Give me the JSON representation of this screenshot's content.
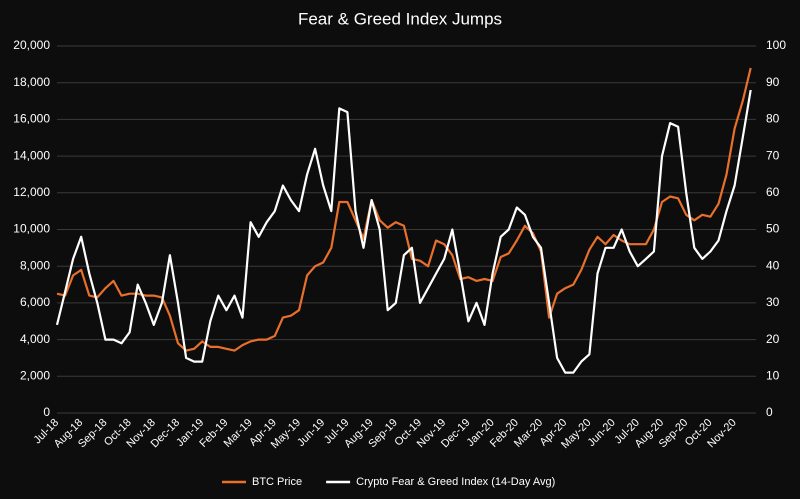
{
  "chart_data": {
    "type": "line",
    "title": "Fear & Greed Index Jumps",
    "x": [
      "Jul-18",
      null,
      null,
      "Aug-18",
      null,
      null,
      "Sep-18",
      null,
      null,
      "Oct-18",
      null,
      null,
      "Nov-18",
      null,
      null,
      "Dec-18",
      null,
      null,
      "Jan-19",
      null,
      null,
      "Feb-19",
      null,
      null,
      "Mar-19",
      null,
      null,
      "Apr-19",
      null,
      null,
      "May-19",
      null,
      null,
      "Jun-19",
      null,
      null,
      "Jul-19",
      null,
      null,
      "Aug-19",
      null,
      null,
      "Sep-19",
      null,
      null,
      "Oct-19",
      null,
      null,
      "Nov-19",
      null,
      null,
      "Dec-19",
      null,
      null,
      "Jan-20",
      null,
      null,
      "Feb-20",
      null,
      null,
      "Mar-20",
      null,
      null,
      "Apr-20",
      null,
      null,
      "May-20",
      null,
      null,
      "Jun-20",
      null,
      null,
      "Jul-20",
      null,
      null,
      "Aug-20",
      null,
      null,
      "Sep-20",
      null,
      null,
      "Oct-20",
      null,
      null,
      "Nov-20",
      null,
      null
    ],
    "series": [
      {
        "name": "BTC Price",
        "color": "#e8702a",
        "axis": "y",
        "values": [
          6500,
          6400,
          7500,
          7800,
          6400,
          6300,
          6800,
          7200,
          6400,
          6500,
          6500,
          6400,
          6400,
          6300,
          5300,
          3800,
          3400,
          3500,
          3900,
          3600,
          3600,
          3500,
          3400,
          3700,
          3900,
          4000,
          4000,
          4200,
          5200,
          5300,
          5600,
          7500,
          8000,
          8200,
          9000,
          11500,
          11500,
          10500,
          9500,
          11600,
          10500,
          10100,
          10400,
          10200,
          8400,
          8300,
          8000,
          9400,
          9200,
          8600,
          7300,
          7400,
          7200,
          7300,
          7200,
          8500,
          8700,
          9400,
          10200,
          9800,
          8800,
          5200,
          6500,
          6800,
          7000,
          7800,
          8900,
          9600,
          9200,
          9700,
          9400,
          9200,
          9200,
          9200,
          10000,
          11500,
          11800,
          11700,
          10800,
          10500,
          10800,
          10700,
          11400,
          13000,
          15500,
          17000,
          18800
        ]
      },
      {
        "name": "Crypto Fear & Greed Index (14-Day Avg)",
        "color": "#ffffff",
        "axis": "y2",
        "values": [
          24,
          33,
          42,
          48,
          38,
          30,
          20,
          20,
          19,
          22,
          35,
          30,
          24,
          30,
          43,
          30,
          15,
          14,
          14,
          25,
          32,
          28,
          32,
          26,
          52,
          48,
          52,
          55,
          62,
          58,
          55,
          65,
          72,
          62,
          55,
          83,
          82,
          55,
          45,
          58,
          50,
          28,
          30,
          43,
          45,
          30,
          34,
          38,
          42,
          50,
          38,
          25,
          30,
          24,
          38,
          48,
          50,
          56,
          54,
          48,
          45,
          30,
          15,
          11,
          11,
          14,
          16,
          38,
          45,
          45,
          50,
          44,
          40,
          42,
          44,
          70,
          79,
          78,
          60,
          45,
          42,
          44,
          47,
          55,
          62,
          75,
          88
        ]
      }
    ],
    "ylim": [
      0,
      20000
    ],
    "yticks": [
      0,
      {
        "value": 2000,
        "label": "2,000"
      },
      {
        "value": 4000,
        "label": "4,000"
      },
      {
        "value": 6000,
        "label": "6,000"
      },
      {
        "value": 8000,
        "label": "8,000"
      },
      {
        "value": 10000,
        "label": "10,000"
      },
      {
        "value": 12000,
        "label": "12,000"
      },
      {
        "value": 14000,
        "label": "14,000"
      },
      {
        "value": 16000,
        "label": "16,000"
      },
      {
        "value": 18000,
        "label": "18,000"
      },
      {
        "value": 20000,
        "label": "20,000"
      }
    ],
    "y2lim": [
      0,
      100
    ],
    "y2ticks": [
      0,
      10,
      20,
      30,
      40,
      50,
      60,
      70,
      80,
      90,
      100
    ],
    "grid": true,
    "legend": "bottom"
  }
}
